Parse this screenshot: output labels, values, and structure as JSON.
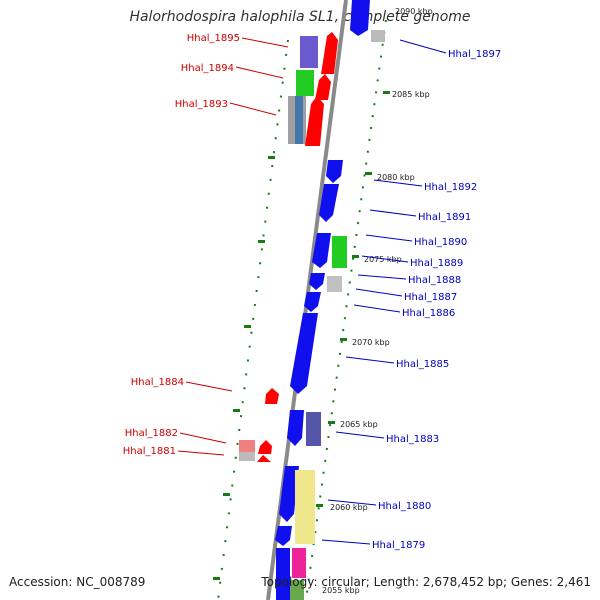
{
  "title": "Halorhodospira halophila SL1, complete genome",
  "footer": {
    "accession": "Accession: NC_008789",
    "summary": "Topology: circular; Length: 2,678,452 bp; Genes: 2,461"
  },
  "colors": {
    "left_label": "#cc0000",
    "right_label": "#0000bb",
    "backbone": "#888888",
    "tick": "#1a7a1a",
    "forward_strand": "#ff0000",
    "reverse_strand": "#1010ee"
  },
  "ticks": [
    "2090 kbp",
    "2085 kbp",
    "2080 kbp",
    "2075 kbp",
    "2070 kbp",
    "2065 kbp",
    "2060 kbp",
    "2055 kbp"
  ],
  "left_labels": [
    "Hhal_1895",
    "Hhal_1894",
    "Hhal_1893",
    "Hhal_1884",
    "Hhal_1882",
    "Hhal_1881"
  ],
  "right_labels": [
    "Hhal_1897",
    "Hhal_1892",
    "Hhal_1891",
    "Hhal_1890",
    "Hhal_1889",
    "Hhal_1888",
    "Hhal_1887",
    "Hhal_1886",
    "Hhal_1885",
    "Hhal_1883",
    "Hhal_1880",
    "Hhal_1879"
  ]
}
